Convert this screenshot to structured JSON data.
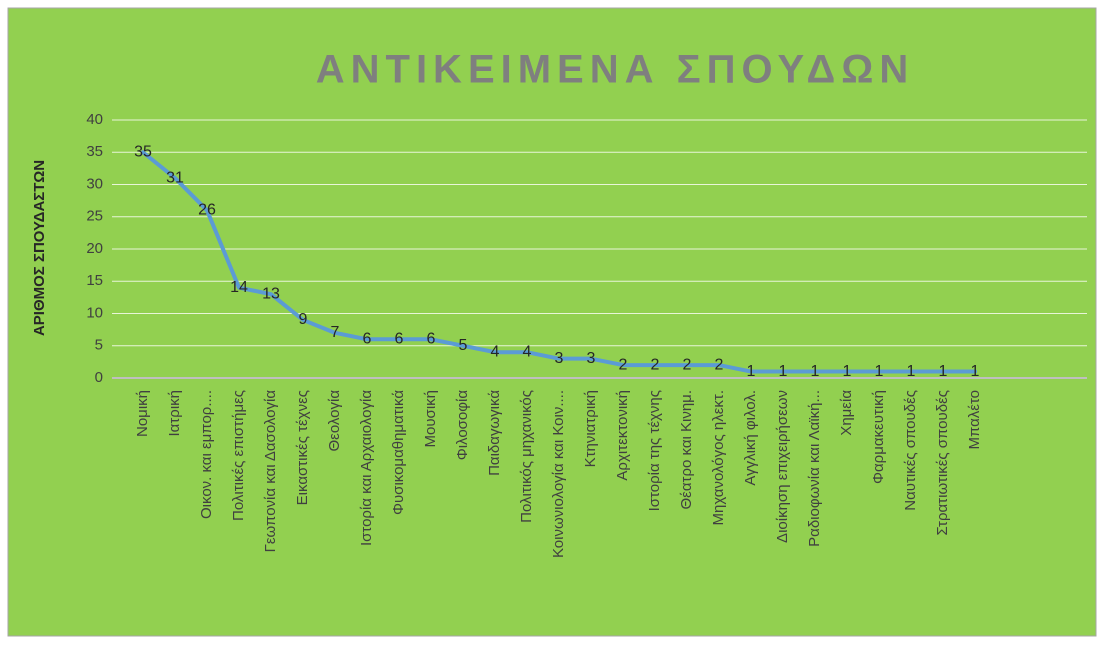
{
  "chart_data": {
    "type": "line",
    "title": "ΑΝΤΙΚΕΙΜΕΝΑ ΣΠΟΥΔΩΝ",
    "y_label": "ΑΡΙΘΜΟΣ ΣΠΟΥΔΑΣΤΩΝ",
    "categories": [
      "Νομική",
      "Ιατρική",
      "Οικον. και εμπορ....",
      "Πολιτικές επιστήμες",
      "Γεωπονία και Δασολογία",
      "Εικαστικές τέχνες",
      "Θεολογία",
      "Ιστορία και Αρχαιολογία",
      "Φυσικομαθηματικά",
      "Μουσική",
      "Φιλοσοφία",
      "Παιδαγωγικά",
      "Πολιτικός μηχανικός",
      "Κοινωνιολογία και Κοιν....",
      "Κτηνιατρική",
      "Αρχιτεκτονική",
      "Ιστορία της τέχνης",
      "Θέατρο και Κινημ.",
      "Μηχανολόγος ηλεκτ.",
      "Αγγλική φιλολ.",
      "Διοίκηση επιχειρήσεων",
      "Ραδιοφωνία και Λαϊκή...",
      "Χημεία",
      "Φαρμακευτική",
      "Ναυτικές σπουδές",
      "Στρατιωτικές σπουδές",
      "Μπαλέτο",
      null,
      null,
      null
    ],
    "values": [
      35,
      31,
      26,
      14,
      13,
      9,
      7,
      6,
      6,
      6,
      5,
      4,
      4,
      3,
      3,
      2,
      2,
      2,
      2,
      1,
      1,
      1,
      1,
      1,
      1,
      1,
      1,
      null,
      null,
      null
    ],
    "color": "#5b9bd5",
    "ylim": [
      0,
      40
    ],
    "yticks": [
      0,
      5,
      10,
      15,
      20,
      25,
      30,
      35,
      40
    ],
    "grid": true
  }
}
